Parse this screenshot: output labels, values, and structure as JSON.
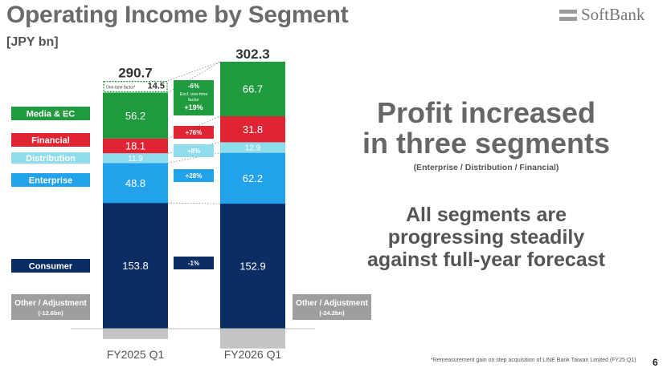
{
  "header": {
    "title": "Operating Income by Segment",
    "unit": "[JPY bn]",
    "logo_text": "SoftBank"
  },
  "message": {
    "headline_line1": "Profit increased",
    "headline_line2": "in three segments",
    "headline_sub": "(Enterprise / Distribution / Financial)",
    "body_line1": "All segments are",
    "body_line2": "progressing steadily",
    "body_line3": "against full-year forecast"
  },
  "footnote": "*Remeasurement gain on step acquisition of LINE Bank Taiwan Limited (FY25 Q1)",
  "page_number": "6",
  "chart_data": {
    "type": "bar",
    "stacked": true,
    "categories": [
      "FY2025 Q1",
      "FY2026 Q1"
    ],
    "totals": [
      290.7,
      302.3
    ],
    "series": [
      {
        "name": "Other / Adjustment",
        "legend_sub": [
          "(-12.6bn)",
          "(-24.2bn)"
        ],
        "values": [
          -12.6,
          -24.2
        ],
        "color": "#c4c4c4",
        "text_color": "#ffffff"
      },
      {
        "name": "Consumer",
        "values": [
          153.8,
          152.9
        ],
        "color": "#0c2d63",
        "text_color": "#ffffff"
      },
      {
        "name": "Enterprise",
        "values": [
          48.8,
          62.2
        ],
        "color": "#22a2ea",
        "text_color": "#ffffff"
      },
      {
        "name": "Distribution",
        "values": [
          11.9,
          12.9
        ],
        "color": "#8fdcec",
        "text_color": "#ffffff"
      },
      {
        "name": "Financial",
        "values": [
          18.1,
          31.8
        ],
        "color": "#e12433",
        "text_color": "#ffffff"
      },
      {
        "name": "Media & EC",
        "values": [
          56.2,
          66.7
        ],
        "color": "#1f9a3e",
        "text_color": "#ffffff"
      },
      {
        "name": "One-time factor*",
        "values": [
          14.5,
          0
        ],
        "color": "#ffffff",
        "text_color": "#333333"
      }
    ],
    "changes": [
      {
        "segment": "Media & EC",
        "lines": [
          "-6%",
          "Excl. one-time",
          "factor",
          "+19%"
        ]
      },
      {
        "segment": "Financial",
        "lines": [
          "+76%"
        ]
      },
      {
        "segment": "Distribution",
        "lines": [
          "+8%"
        ]
      },
      {
        "segment": "Enterprise",
        "lines": [
          "+28%"
        ]
      },
      {
        "segment": "Consumer",
        "lines": [
          "-1%"
        ]
      }
    ],
    "colors": {
      "green": "#1f9a3e",
      "red": "#e12433",
      "light_blue": "#8fdcec",
      "blue": "#22a2ea",
      "navy": "#0c2d63",
      "gray": "#c4c4c4"
    }
  }
}
